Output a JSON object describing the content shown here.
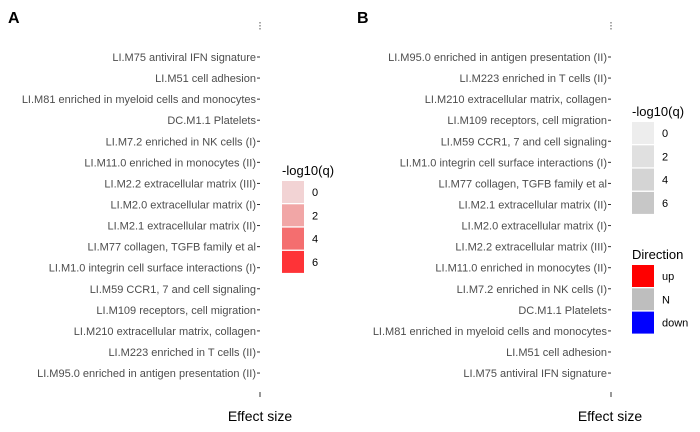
{
  "chart_data": [
    {
      "panel_label": "A",
      "type": "bar",
      "orientation": "horizontal",
      "xlabel": "Effect size",
      "x_tick_label": "",
      "categories": [
        "LI.M75 antiviral IFN signature",
        "LI.M51 cell adhesion",
        "LI.M81 enriched in myeloid cells and monocytes",
        "DC.M1.1 Platelets",
        "LI.M7.2 enriched in NK cells (I)",
        "LI.M11.0 enriched in monocytes (II)",
        "LI.M2.2 extracellular matrix (III)",
        "LI.M2.0 extracellular matrix (I)",
        "LI.M2.1 extracellular matrix (II)",
        "LI.M77 collagen, TGFB family et al",
        "LI.M1.0 integrin cell surface interactions (I)",
        "LI.M59 CCR1, 7 and cell signaling",
        "LI.M109 receptors, cell migration",
        "LI.M210 extracellular matrix, collagen",
        "LI.M223 enriched in T cells (II)",
        "LI.M95.0 enriched in antigen presentation (II)"
      ],
      "legends": [
        {
          "title": "-log10(q)",
          "labels": [
            "0",
            "2",
            "4",
            "6"
          ],
          "colors": [
            "#f2d3d4",
            "#f1a6a6",
            "#f46e6f",
            "#fe3337"
          ]
        }
      ]
    },
    {
      "panel_label": "B",
      "type": "bar",
      "orientation": "horizontal",
      "xlabel": "Effect size",
      "x_tick_label": "",
      "categories": [
        "LI.M95.0 enriched in antigen presentation (II)",
        "LI.M223 enriched in T cells (II)",
        "LI.M210 extracellular matrix, collagen",
        "LI.M109 receptors, cell migration",
        "LI.M59 CCR1, 7 and cell signaling",
        "LI.M1.0 integrin cell surface interactions (I)",
        "LI.M77 collagen, TGFB family et al",
        "LI.M2.1 extracellular matrix (II)",
        "LI.M2.0 extracellular matrix (I)",
        "LI.M2.2 extracellular matrix (III)",
        "LI.M11.0 enriched in monocytes (II)",
        "LI.M7.2 enriched in NK cells (I)",
        "DC.M1.1 Platelets",
        "LI.M81 enriched in myeloid cells and monocytes",
        "LI.M51 cell adhesion",
        "LI.M75 antiviral IFN signature"
      ],
      "legends": [
        {
          "title": "-log10(q)",
          "labels": [
            "0",
            "2",
            "4",
            "6"
          ],
          "colors": [
            "#ededed",
            "#e0e0e0",
            "#d4d4d4",
            "#c7c7c7"
          ]
        },
        {
          "title": "Direction",
          "labels": [
            "up",
            "N",
            "down"
          ],
          "colors": [
            "#ff0000",
            "#bebebe",
            "#0000ff"
          ]
        }
      ]
    }
  ]
}
